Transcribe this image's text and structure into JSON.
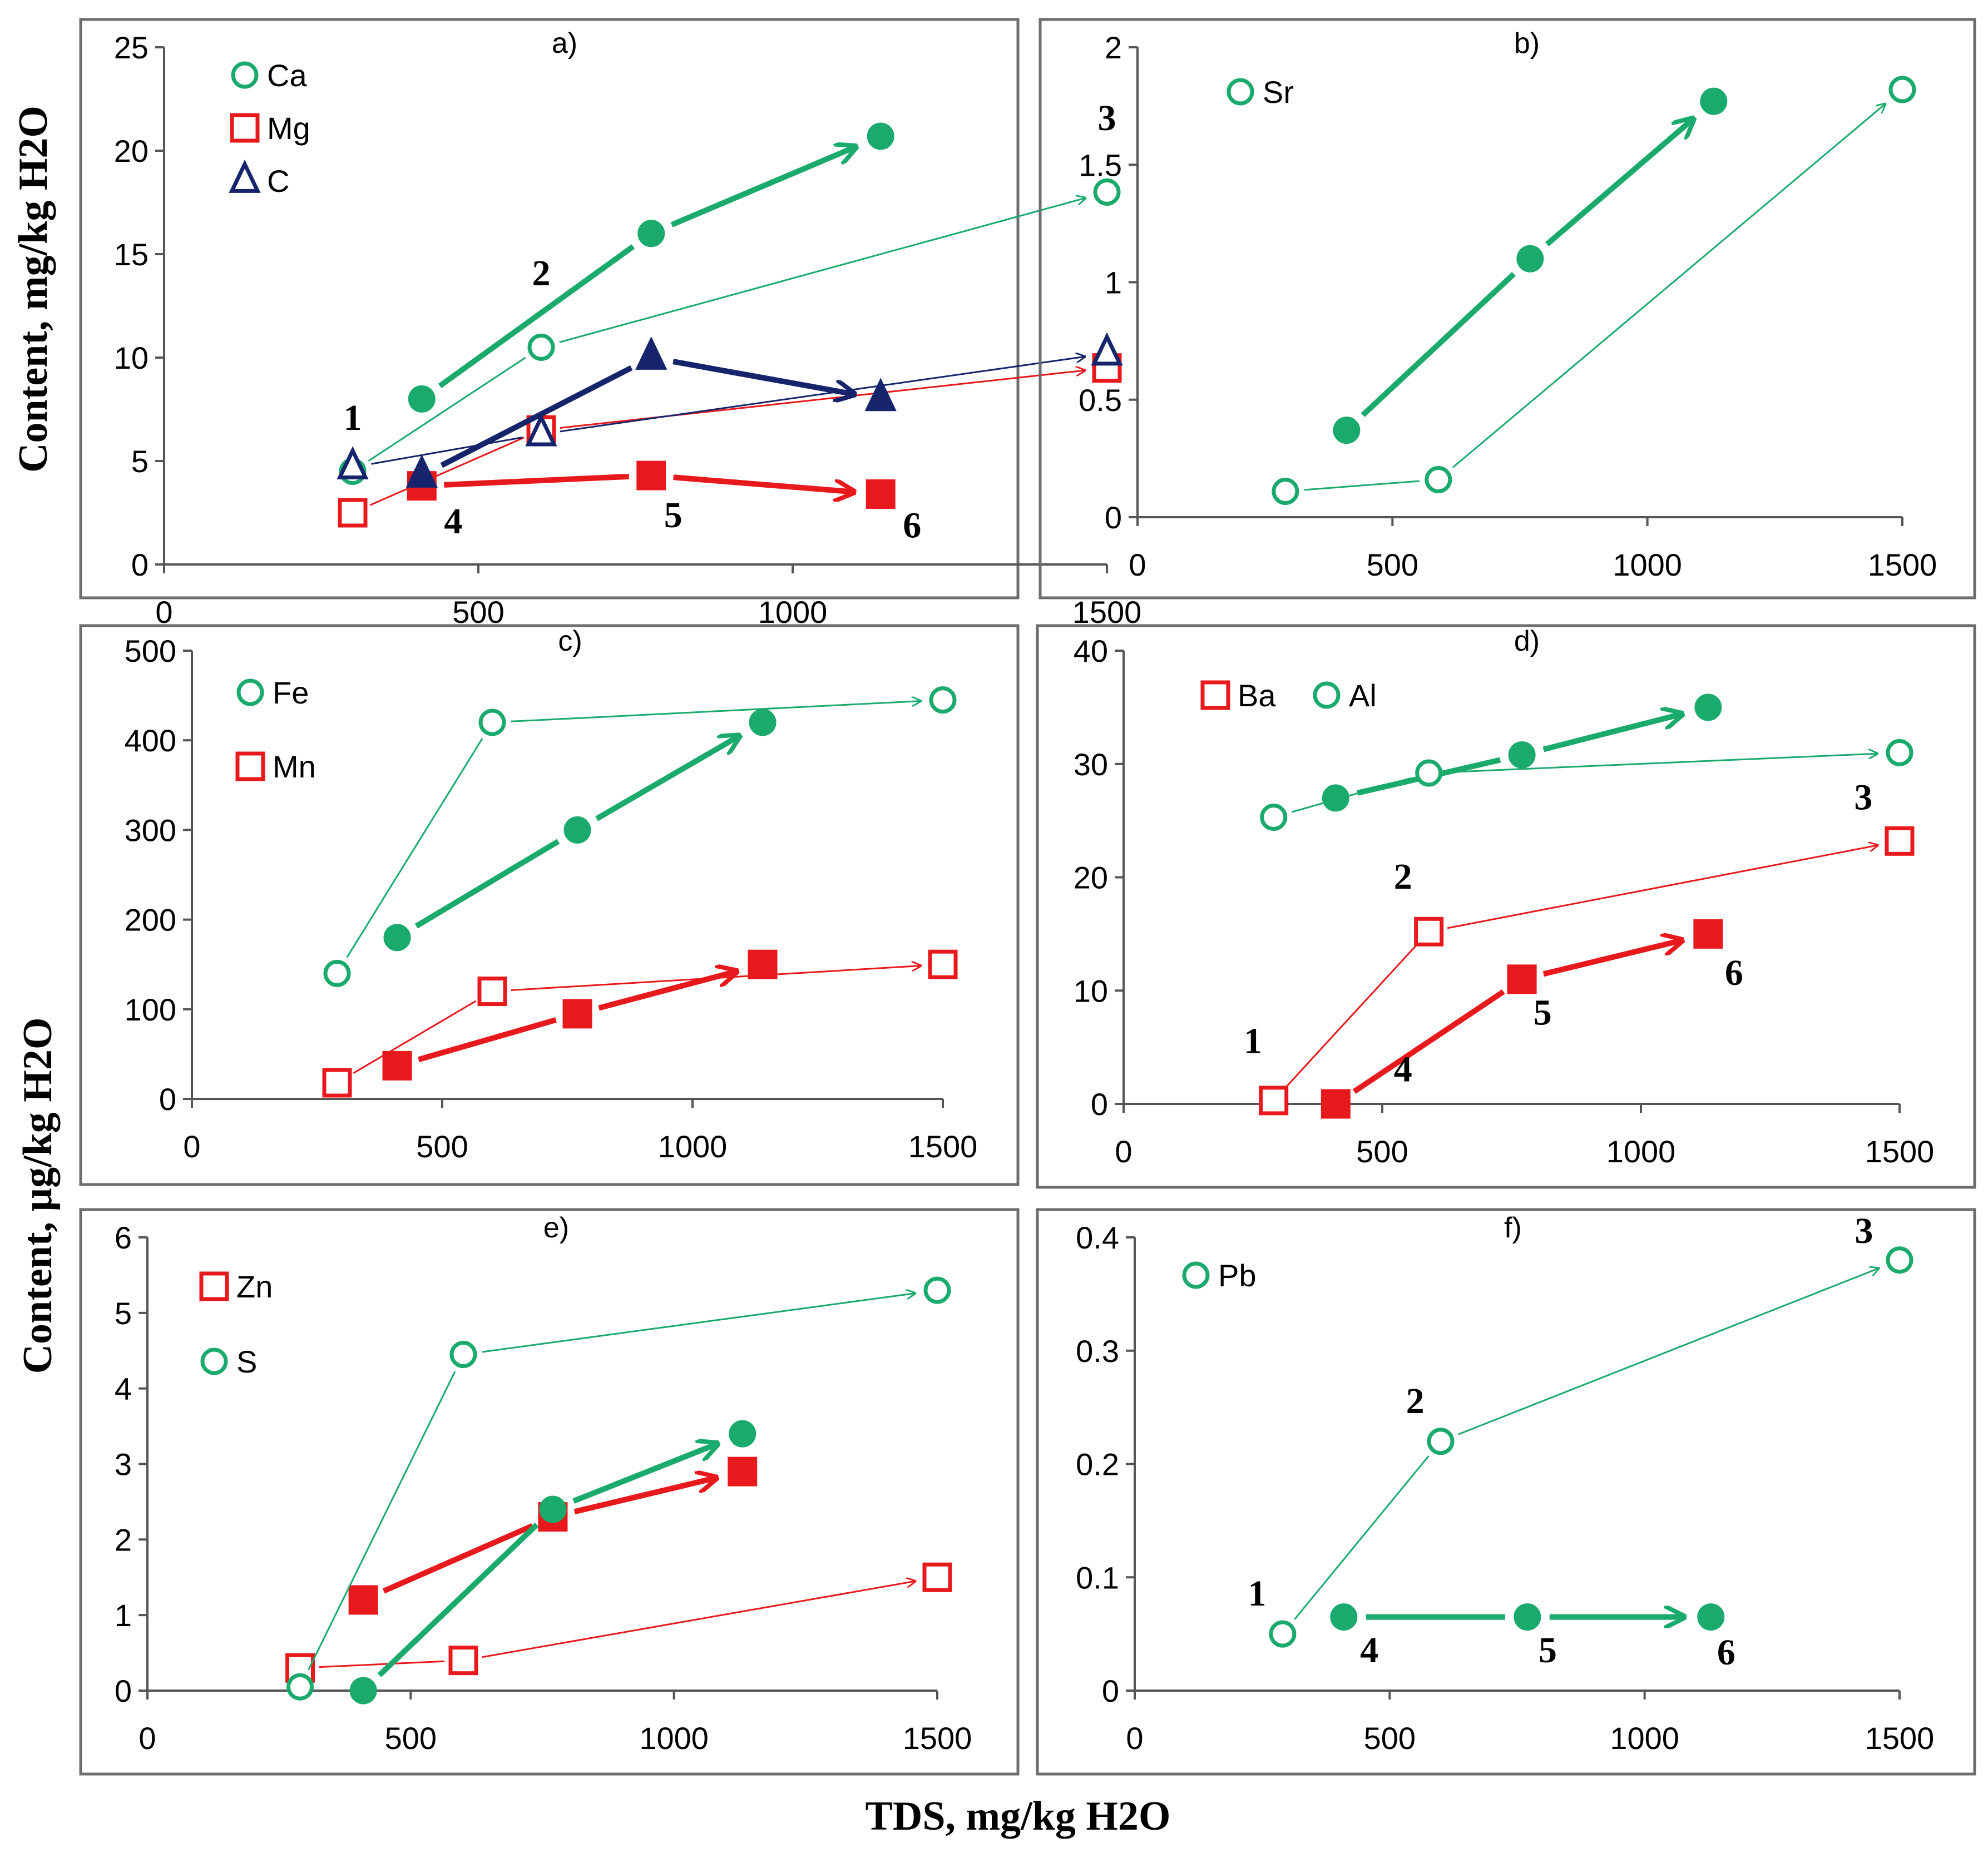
{
  "figure": {
    "ylabel_top": "Content, mg/kg H2O",
    "ylabel_bottom": "Content, µg/kg H2O",
    "xlabel": "TDS, mg/kg H2O"
  },
  "colors": {
    "green": "#1aaa6c",
    "red": "#e8191c",
    "navy": "#15246b"
  },
  "chart_data": [
    {
      "id": "a",
      "type": "scatter",
      "title": "a)",
      "xlim": [
        0,
        1500
      ],
      "ylim": [
        0,
        25
      ],
      "xticks": [
        "0",
        "500",
        "1000",
        "1500"
      ],
      "yticks": [
        "0",
        "5",
        "10",
        "15",
        "20",
        "25"
      ],
      "legend_placement": "top-left",
      "series": [
        {
          "name": "Ca",
          "marker": "circle",
          "color": "green",
          "x": [
            300,
            410,
            600,
            775,
            1140,
            1500
          ],
          "y": [
            4.5,
            8,
            10.5,
            16,
            20.7,
            18
          ]
        },
        {
          "name": "Mg",
          "marker": "square",
          "color": "red",
          "x": [
            300,
            410,
            600,
            775,
            1140,
            1500
          ],
          "y": [
            2.5,
            3.8,
            6.5,
            4.3,
            3.4,
            9.5
          ]
        },
        {
          "name": "C",
          "marker": "triangle",
          "color": "navy",
          "x": [
            300,
            410,
            600,
            775,
            1140,
            1500
          ],
          "y": [
            4.7,
            4.3,
            6.3,
            10,
            8,
            10.2
          ]
        }
      ],
      "annotations": [
        {
          "text": "1",
          "x": 300,
          "y": 6.5
        },
        {
          "text": "2",
          "x": 600,
          "y": 13.5
        },
        {
          "text": "3",
          "x": 1500,
          "y": 21
        },
        {
          "text": "4",
          "x": 460,
          "y": 1.5
        },
        {
          "text": "5",
          "x": 810,
          "y": 1.8
        },
        {
          "text": "6",
          "x": 1190,
          "y": 1.3
        }
      ]
    },
    {
      "id": "b",
      "type": "scatter",
      "title": "b)",
      "xlim": [
        0,
        1500
      ],
      "ylim": [
        0,
        2
      ],
      "xticks": [
        "0",
        "500",
        "1000",
        "1500"
      ],
      "yticks": [
        "0",
        "0.5",
        "1",
        "1.5",
        "2"
      ],
      "legend_placement": "top-left",
      "series": [
        {
          "name": "Sr",
          "marker": "circle",
          "color": "green",
          "x": [
            290,
            410,
            590,
            770,
            1130,
            1500
          ],
          "y": [
            0.11,
            0.37,
            0.16,
            1.1,
            1.77,
            1.82
          ]
        }
      ],
      "annotations": []
    },
    {
      "id": "c",
      "type": "scatter",
      "title": "c)",
      "xlim": [
        0,
        1500
      ],
      "ylim": [
        0,
        500
      ],
      "xticks": [
        "0",
        "500",
        "1000",
        "1500"
      ],
      "yticks": [
        "0",
        "100",
        "200",
        "300",
        "400",
        "500"
      ],
      "legend_placement": "top-left",
      "series": [
        {
          "name": "Fe",
          "marker": "circle",
          "color": "green",
          "x": [
            290,
            410,
            600,
            770,
            1140,
            1500
          ],
          "y": [
            140,
            180,
            420,
            300,
            420,
            445
          ]
        },
        {
          "name": "Mn",
          "marker": "square",
          "color": "red",
          "x": [
            290,
            410,
            600,
            770,
            1140,
            1500
          ],
          "y": [
            18,
            37,
            120,
            95,
            150,
            150
          ]
        }
      ],
      "annotations": []
    },
    {
      "id": "d",
      "type": "scatter",
      "title": "d)",
      "xlim": [
        0,
        1500
      ],
      "ylim": [
        0,
        40
      ],
      "xticks": [
        "0",
        "500",
        "1000",
        "1500"
      ],
      "yticks": [
        "0",
        "10",
        "20",
        "30",
        "40"
      ],
      "legend_placement": "top-left",
      "series": [
        {
          "name": "Ba",
          "marker": "square",
          "color": "red",
          "x": [
            290,
            410,
            590,
            770,
            1130,
            1500
          ],
          "y": [
            0.3,
            0,
            15.2,
            11,
            15,
            23.2
          ]
        },
        {
          "name": "Al",
          "marker": "circle",
          "color": "green",
          "x": [
            290,
            410,
            590,
            770,
            1130,
            1500
          ],
          "y": [
            25.3,
            27,
            29.2,
            30.8,
            35,
            31
          ]
        }
      ],
      "annotations": [
        {
          "text": "1",
          "x": 250,
          "y": 4.5
        },
        {
          "text": "2",
          "x": 540,
          "y": 19
        },
        {
          "text": "3",
          "x": 1430,
          "y": 26
        },
        {
          "text": "4",
          "x": 540,
          "y": 2
        },
        {
          "text": "5",
          "x": 810,
          "y": 7
        },
        {
          "text": "6",
          "x": 1180,
          "y": 10.5
        }
      ]
    },
    {
      "id": "e",
      "type": "scatter",
      "title": "e)",
      "xlim": [
        0,
        1500
      ],
      "ylim": [
        0,
        6
      ],
      "xticks": [
        "0",
        "500",
        "1000",
        "1500"
      ],
      "yticks": [
        "0",
        "1",
        "2",
        "3",
        "4",
        "5",
        "6"
      ],
      "legend_placement": "top-left",
      "series": [
        {
          "name": "Zn",
          "marker": "square",
          "color": "red",
          "x": [
            290,
            410,
            600,
            770,
            1130,
            1500
          ],
          "y": [
            0.3,
            1.2,
            0.4,
            2.3,
            2.9,
            1.5
          ]
        },
        {
          "name": "S",
          "marker": "circle",
          "color": "green",
          "x": [
            290,
            410,
            600,
            770,
            1130,
            1500
          ],
          "y": [
            0.05,
            0,
            4.45,
            2.4,
            3.4,
            5.3
          ]
        }
      ],
      "annotations": []
    },
    {
      "id": "f",
      "type": "scatter",
      "title": "f)",
      "xlim": [
        0,
        1500
      ],
      "ylim": [
        0,
        0.4
      ],
      "xticks": [
        "0",
        "500",
        "1000",
        "1500"
      ],
      "yticks": [
        "0",
        "0.1",
        "0.2",
        "0.3",
        "0.4"
      ],
      "legend_placement": "top-left",
      "series": [
        {
          "name": "Pb",
          "marker": "circle",
          "color": "green",
          "x": [
            290,
            410,
            600,
            770,
            1130,
            1500
          ],
          "y": [
            0.05,
            0.065,
            0.22,
            0.065,
            0.065,
            0.38
          ]
        }
      ],
      "annotations": [
        {
          "text": "1",
          "x": 240,
          "y": 0.075
        },
        {
          "text": "2",
          "x": 550,
          "y": 0.245
        },
        {
          "text": "3",
          "x": 1430,
          "y": 0.395
        },
        {
          "text": "4",
          "x": 460,
          "y": 0.025
        },
        {
          "text": "5",
          "x": 810,
          "y": 0.025
        },
        {
          "text": "6",
          "x": 1160,
          "y": 0.023
        }
      ]
    }
  ]
}
